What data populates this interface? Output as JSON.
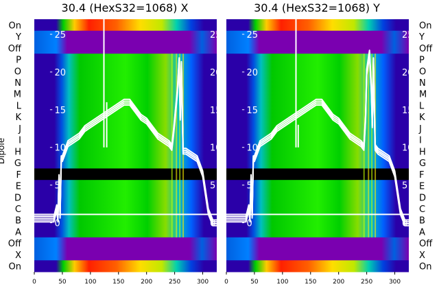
{
  "figure": {
    "ylabel": "Dipole"
  },
  "rows_top_to_bottom": [
    "On",
    "Y",
    "Off",
    "P",
    "O",
    "N",
    "M",
    "L",
    "K",
    "J",
    "I",
    "H",
    "G",
    "F",
    "E",
    "D",
    "C",
    "B",
    "A",
    "Off",
    "X",
    "On"
  ],
  "colors": {
    "background": "#ffffff",
    "trace": "#ffffff",
    "masked_row": "#000000",
    "band_low": "#2a00a8",
    "band_mid": "#00d000",
    "band_high": "#ff0000",
    "off_band": "#7a00b0"
  },
  "chart_data": [
    {
      "type": "heatmap",
      "title": "30.4 (HexS32=1068) X",
      "x_ticks": [
        0,
        50,
        100,
        150,
        200,
        250,
        300
      ],
      "xlim": [
        0,
        325
      ],
      "inner_y_ticks": [
        0,
        5,
        10,
        15,
        20,
        25
      ],
      "inner_ylim": [
        -6.5,
        27
      ],
      "masked_row": "F",
      "trace": {
        "x": [
          0,
          35,
          40,
          42,
          44,
          46,
          48,
          50,
          55,
          60,
          70,
          80,
          90,
          100,
          110,
          120,
          130,
          140,
          150,
          160,
          170,
          180,
          190,
          200,
          210,
          220,
          230,
          240,
          245,
          248,
          250,
          255,
          258,
          260,
          262,
          265,
          270,
          280,
          290,
          300,
          310,
          318,
          325
        ],
        "y": [
          0.5,
          0.5,
          2.0,
          0.5,
          6.0,
          1.0,
          8.5,
          8.5,
          9.5,
          10.5,
          11.0,
          11.5,
          12.5,
          13.0,
          13.5,
          14.0,
          14.5,
          15.0,
          15.5,
          16.0,
          16.0,
          15.0,
          14.0,
          13.5,
          12.5,
          11.5,
          11.0,
          10.5,
          10.0,
          12.0,
          13.5,
          17.5,
          21.5,
          14.0,
          21.0,
          9.5,
          9.5,
          9.0,
          8.5,
          6.5,
          1.5,
          0.0,
          0.0
        ]
      },
      "spikes": [
        {
          "x": 124,
          "y_top": 27
        },
        {
          "x": 129,
          "y_top": 16
        }
      ]
    },
    {
      "type": "heatmap",
      "title": "30.4 (HexS32=1068) Y",
      "x_ticks": [
        0,
        50,
        100,
        150,
        200,
        250,
        300
      ],
      "xlim": [
        0,
        325
      ],
      "inner_y_ticks": [
        0,
        5,
        10,
        15,
        20,
        25
      ],
      "inner_ylim": [
        -6.5,
        27
      ],
      "masked_row": "F",
      "trace": {
        "x": [
          0,
          35,
          40,
          42,
          44,
          46,
          48,
          50,
          55,
          60,
          70,
          80,
          90,
          100,
          110,
          120,
          130,
          140,
          150,
          160,
          170,
          180,
          190,
          200,
          210,
          220,
          230,
          240,
          245,
          248,
          250,
          255,
          258,
          260,
          262,
          265,
          270,
          280,
          290,
          300,
          310,
          318,
          325
        ],
        "y": [
          0.5,
          0.5,
          2.0,
          0.5,
          6.0,
          1.0,
          8.5,
          8.5,
          9.5,
          10.5,
          11.0,
          11.5,
          12.5,
          13.0,
          13.5,
          14.0,
          14.5,
          15.0,
          15.5,
          16.0,
          16.0,
          15.0,
          14.0,
          13.5,
          12.5,
          11.5,
          11.0,
          10.5,
          10.0,
          14.0,
          20.0,
          22.5,
          18.0,
          13.0,
          21.5,
          10.0,
          9.5,
          9.0,
          8.5,
          6.5,
          1.5,
          0.0,
          0.0
        ]
      },
      "spikes": [
        {
          "x": 124,
          "y_top": 27
        },
        {
          "x": 128,
          "y_top": 13
        }
      ]
    }
  ]
}
